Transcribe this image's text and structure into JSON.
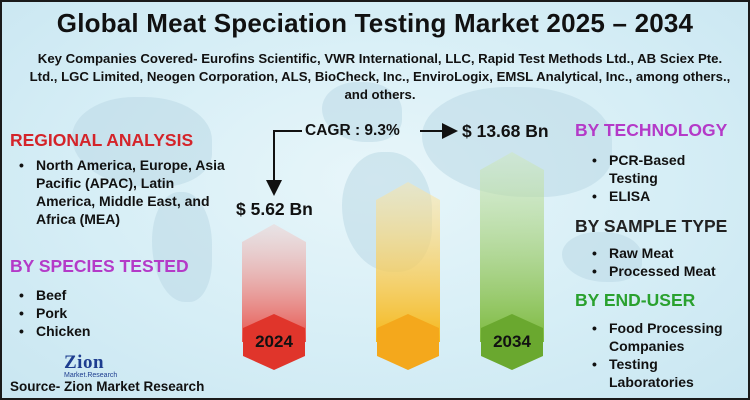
{
  "title": "Global Meat Speciation Testing Market 2025 – 2034",
  "companies": "Key Companies Covered- Eurofins Scientific, VWR International, LLC, Rapid Test Methods Ltd., AB Sciex Pte. Ltd., LGC Limited, Neogen Corporation, ALS, BioCheck, Inc., EnviroLogix, EMSL Analytical, Inc., among others., and others.",
  "regional": {
    "heading": "REGIONAL ANALYSIS",
    "items": [
      "North America, Europe, Asia Pacific (APAC), Latin America, Middle East, and Africa (MEA)"
    ]
  },
  "species": {
    "heading": "BY SPECIES TESTED",
    "items": [
      "Beef",
      "Pork",
      "Chicken"
    ]
  },
  "technology": {
    "heading": "BY TECHNOLOGY",
    "items": [
      "PCR-Based Testing",
      "ELISA"
    ]
  },
  "sample": {
    "heading": "BY SAMPLE TYPE",
    "items": [
      "Raw Meat",
      "Processed Meat"
    ]
  },
  "enduser": {
    "heading": "BY END-USER",
    "items": [
      "Food Processing Companies",
      "Testing Laboratories"
    ]
  },
  "market": {
    "cagr": "CAGR : 9.3%",
    "start_value": "$ 5.62 Bn",
    "end_value": "$ 13.68 Bn",
    "start_year": "2024",
    "end_year": "2034",
    "bar_colors": [
      "#e8514a",
      "#f6b81a",
      "#7dba3e"
    ],
    "hex_colors": [
      "#e0352b",
      "#f4a81c",
      "#6aa82f"
    ]
  },
  "logo": {
    "brand": "Zion",
    "tagline": "Market.Research"
  },
  "source": "Source- Zion Market Research"
}
